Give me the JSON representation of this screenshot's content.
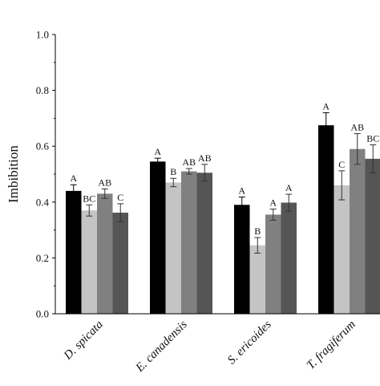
{
  "chart_data": {
    "type": "bar",
    "title": "",
    "xlabel": "",
    "ylabel": "Imbibition",
    "ylim": [
      0,
      1.0
    ],
    "yticks": [
      "0.0",
      "0.2",
      "0.4",
      "0.6",
      "0.8",
      "1.0"
    ],
    "grid": false,
    "legend": "none",
    "categories": [
      "D. spicata",
      "E. canadensis",
      "S. ericoides",
      "T. fragiferum"
    ],
    "series": [
      {
        "color": "#000000",
        "values": [
          0.44,
          0.545,
          0.39,
          0.675
        ],
        "errors": [
          0.022,
          0.012,
          0.028,
          0.045
        ],
        "labels": [
          "A",
          "A",
          "A",
          "A"
        ]
      },
      {
        "color": "#c4c4c4",
        "values": [
          0.37,
          0.47,
          0.245,
          0.46
        ],
        "errors": [
          0.02,
          0.015,
          0.028,
          0.052
        ],
        "labels": [
          "BC",
          "B",
          "B",
          "C"
        ]
      },
      {
        "color": "#808080",
        "values": [
          0.43,
          0.51,
          0.355,
          0.59
        ],
        "errors": [
          0.017,
          0.01,
          0.02,
          0.055
        ],
        "labels": [
          "AB",
          "AB",
          "A",
          "AB"
        ]
      },
      {
        "color": "#555555",
        "values": [
          0.362,
          0.505,
          0.398,
          0.555
        ],
        "errors": [
          0.032,
          0.03,
          0.03,
          0.05
        ],
        "labels": [
          "C",
          "AB",
          "A",
          "BC"
        ]
      }
    ]
  }
}
